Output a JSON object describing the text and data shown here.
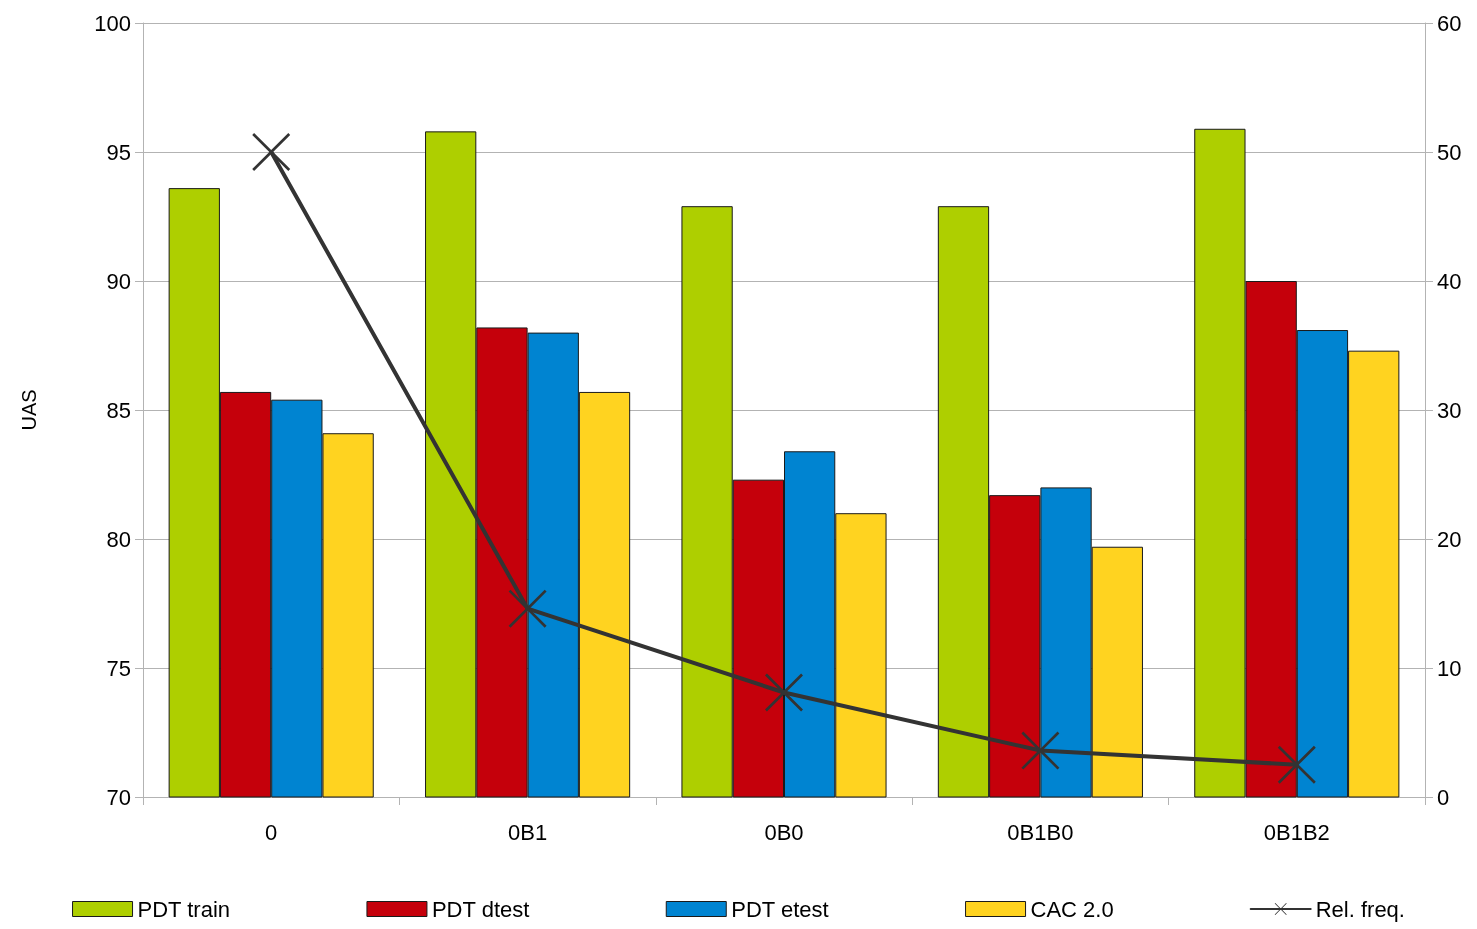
{
  "chart_data": {
    "type": "bar",
    "categories": [
      "0",
      "0B1",
      "0B0",
      "0B1B0",
      "0B1B2"
    ],
    "series": [
      {
        "name": "PDT train",
        "color": "#aecf00",
        "values": [
          93.6,
          95.8,
          92.9,
          92.9,
          95.9
        ]
      },
      {
        "name": "PDT dtest",
        "color": "#c5000b",
        "values": [
          85.7,
          88.2,
          82.3,
          81.7,
          90.0
        ]
      },
      {
        "name": "PDT etest",
        "color": "#0084d1",
        "values": [
          85.4,
          88.0,
          83.4,
          82.0,
          88.1
        ]
      },
      {
        "name": "CAC 2.0",
        "color": "#ffd320",
        "values": [
          84.1,
          85.7,
          81.0,
          79.7,
          87.3
        ]
      },
      {
        "name": "Rel. freq.",
        "type": "line",
        "axis": "y2",
        "color": "#333333",
        "values": [
          50,
          14.6,
          8.1,
          3.6,
          2.5
        ]
      }
    ],
    "ylabel": "UAS",
    "ylim": [
      70,
      100
    ],
    "yticks": [
      70,
      75,
      80,
      85,
      90,
      95,
      100
    ],
    "y2lim": [
      0,
      60
    ],
    "y2ticks": [
      0,
      10,
      20,
      30,
      40,
      50,
      60
    ],
    "grid": "y",
    "legend": "bottom",
    "marker": "cross",
    "line_style": "solid"
  }
}
